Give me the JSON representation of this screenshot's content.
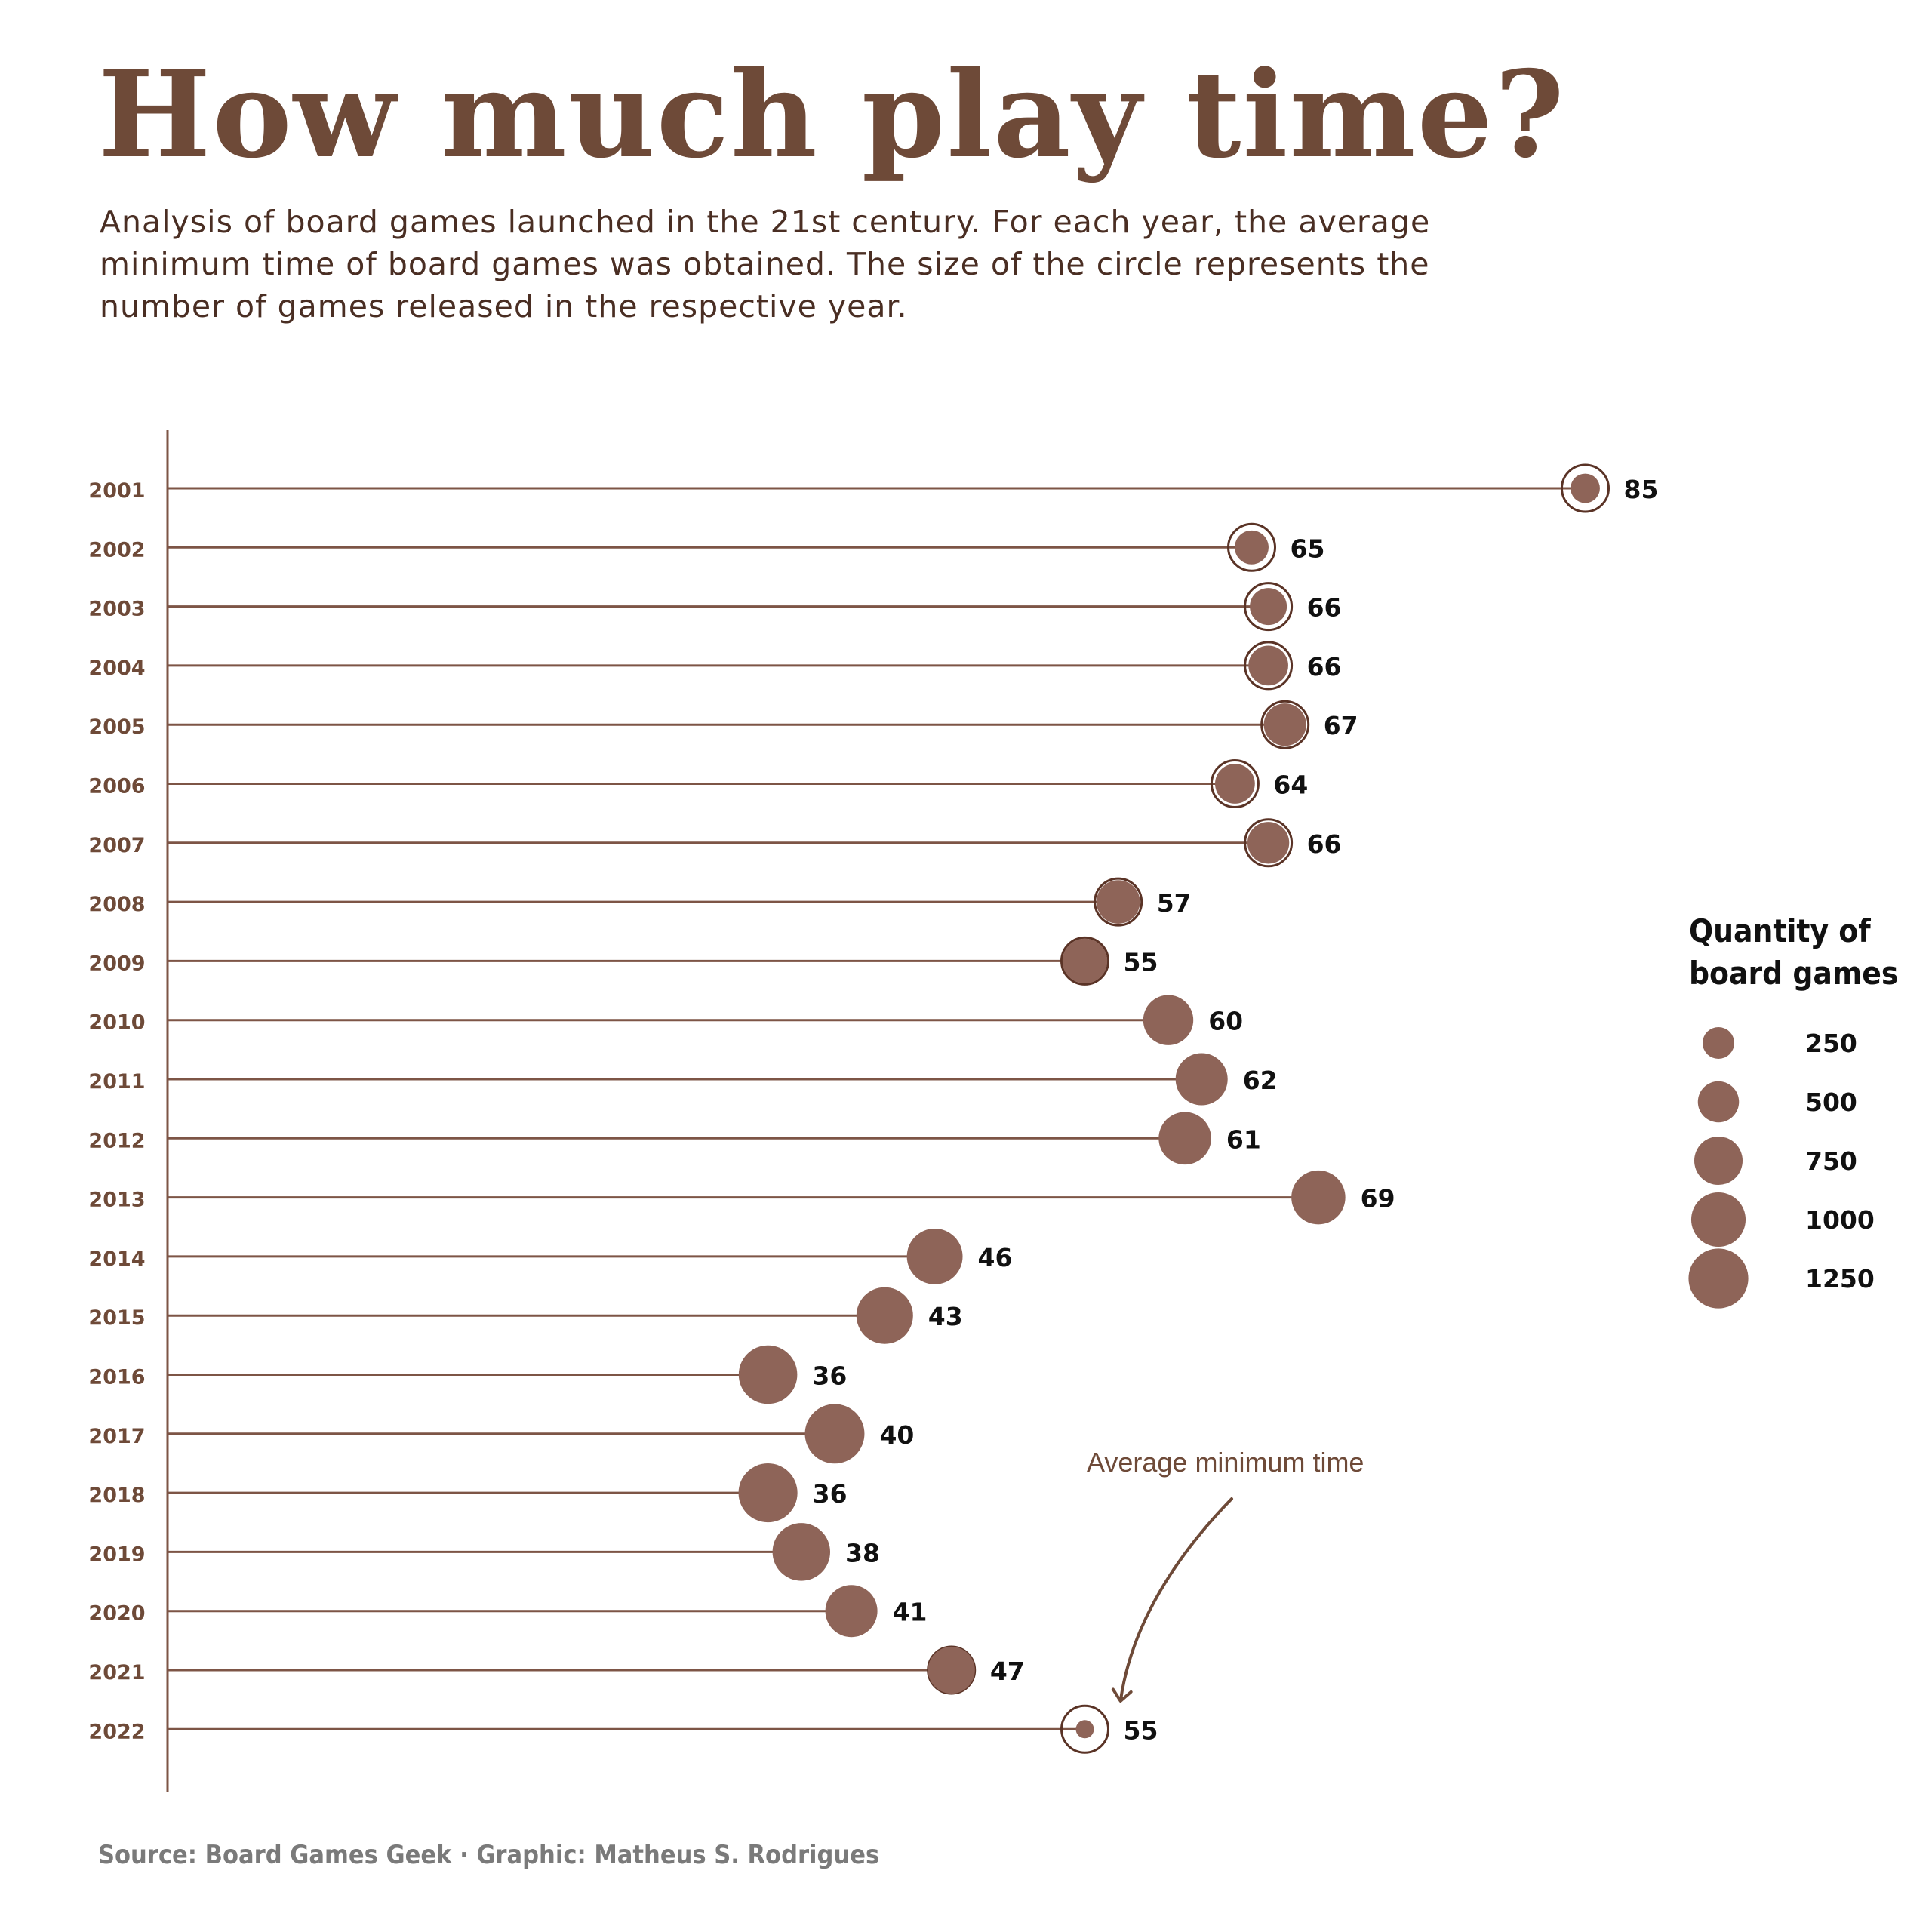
{
  "title": "How much play time?",
  "subtitle": "Analysis of board games launched in the 21st century. For each year, the average minimum time of board games was obtained. The size of the circle represents the number of games released in the respective year.",
  "source": "Source: Board Games Geek · Graphic: Matheus S. Rodrigues",
  "colors": {
    "title": "#6e4a38",
    "line": "#7d5546",
    "dot": "#8e6458",
    "ring": "#5a3326",
    "label": "#111111",
    "year": "#6e4a38"
  },
  "chart_data": {
    "type": "lollipop",
    "x_label": "Average minimum time",
    "categories": [
      "2001",
      "2002",
      "2003",
      "2004",
      "2005",
      "2006",
      "2007",
      "2008",
      "2009",
      "2010",
      "2011",
      "2012",
      "2013",
      "2014",
      "2015",
      "2016",
      "2017",
      "2018",
      "2019",
      "2020",
      "2021",
      "2022"
    ],
    "values": [
      85,
      65,
      66,
      66,
      67,
      64,
      66,
      57,
      55,
      60,
      62,
      61,
      69,
      46,
      43,
      36,
      40,
      36,
      38,
      41,
      47,
      55
    ],
    "counts": [
      200,
      300,
      380,
      460,
      540,
      460,
      520,
      580,
      620,
      820,
      900,
      920,
      980,
      1060,
      1100,
      1190,
      1240,
      1210,
      1150,
      900,
      700,
      40
    ],
    "legend": {
      "title_line1": "Quantity of",
      "title_line2": "board games",
      "sizes": [
        250,
        500,
        750,
        1000,
        1250
      ],
      "labels": [
        "250",
        "500",
        "750",
        "1000",
        "1250"
      ],
      "placement": "right"
    },
    "annotation": "Average minimum time"
  }
}
